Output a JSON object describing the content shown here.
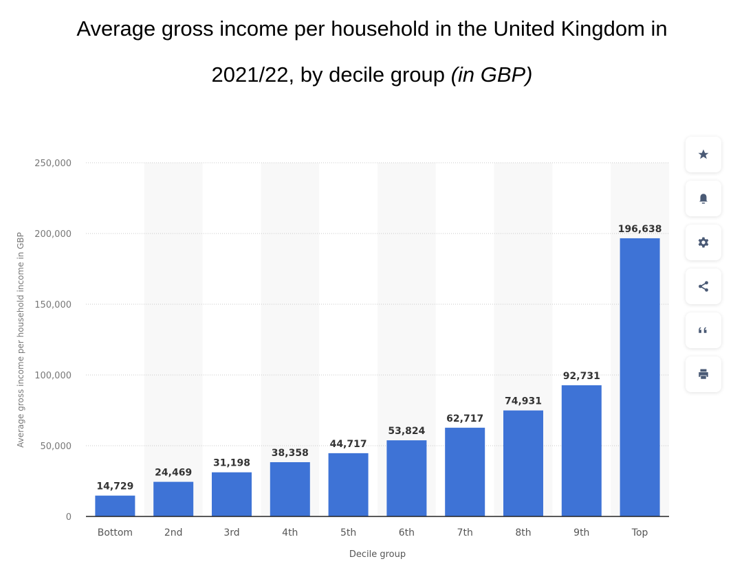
{
  "title": {
    "main_line1": "Average gross income per household in the United Kingdom in",
    "main_line2": "2021/22, by decile group",
    "unit": "(in GBP)"
  },
  "chart_data": {
    "type": "bar",
    "categories": [
      "Bottom",
      "2nd",
      "3rd",
      "4th",
      "5th",
      "6th",
      "7th",
      "8th",
      "9th",
      "Top"
    ],
    "values": [
      14729,
      24469,
      31198,
      38358,
      44717,
      53824,
      62717,
      74931,
      92731,
      196638
    ],
    "value_labels": [
      "14,729",
      "24,469",
      "31,198",
      "38,358",
      "44,717",
      "53,824",
      "62,717",
      "74,931",
      "92,731",
      "196,638"
    ],
    "xlabel": "Decile group",
    "ylabel": "Average gross income per household income in GBP",
    "ylim": [
      0,
      250000
    ],
    "yticks": [
      0,
      50000,
      100000,
      150000,
      200000,
      250000
    ],
    "ytick_labels": [
      "0",
      "50,000",
      "100,000",
      "150,000",
      "200,000",
      "250,000"
    ],
    "grid": true,
    "alternating_column_shading": true,
    "bar_color": "#3e73d6"
  },
  "toolbar": [
    {
      "icon": "star-icon",
      "label": "Favorite"
    },
    {
      "icon": "bell-icon",
      "label": "Notifications"
    },
    {
      "icon": "gear-icon",
      "label": "Settings"
    },
    {
      "icon": "share-icon",
      "label": "Share"
    },
    {
      "icon": "quote-icon",
      "label": "Cite"
    },
    {
      "icon": "print-icon",
      "label": "Print"
    }
  ]
}
